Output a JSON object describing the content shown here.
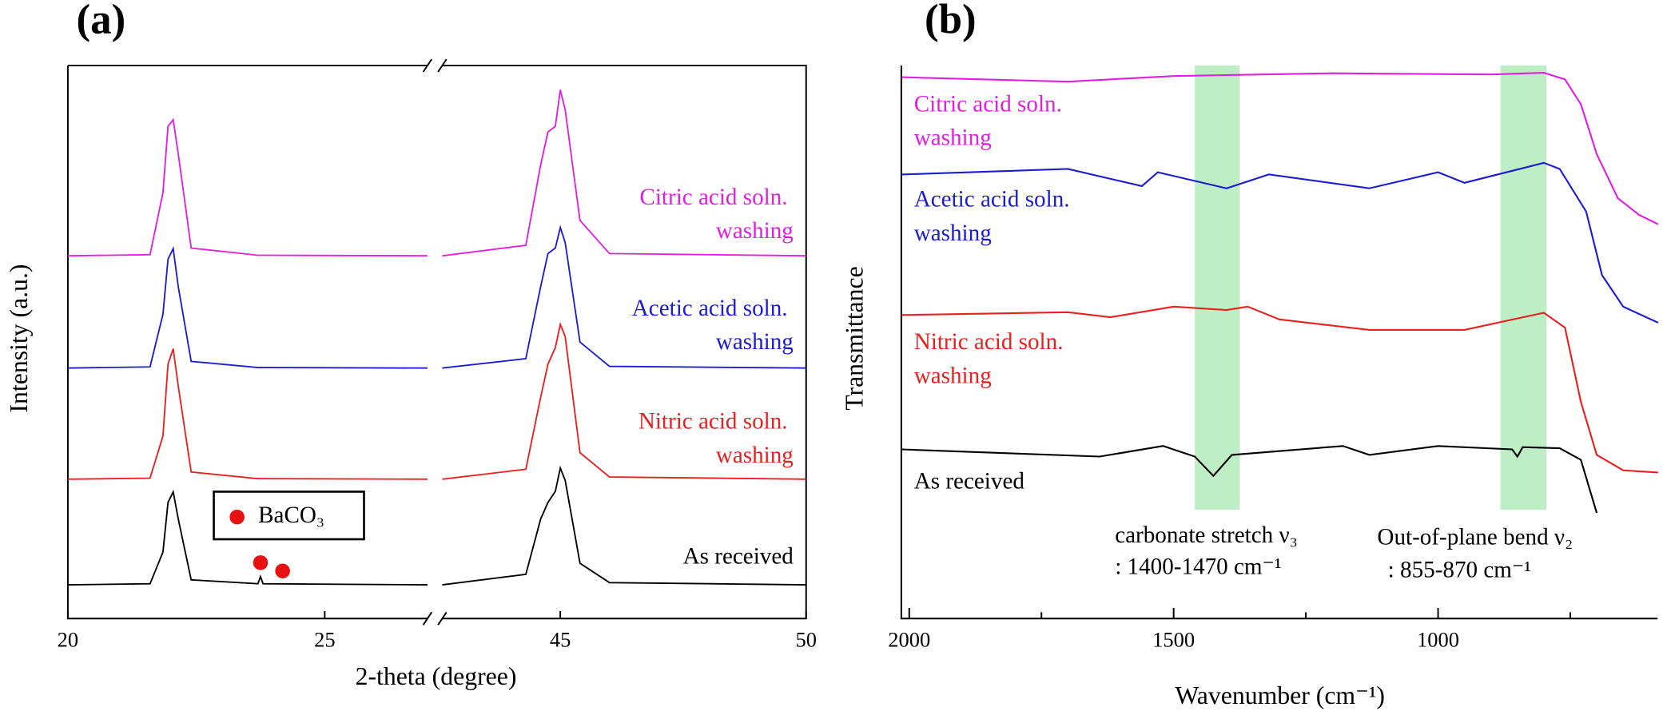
{
  "chart_data": [
    {
      "type": "line",
      "title": "(a)",
      "xlabel": "2-theta (degree)",
      "ylabel": "Intensity (a.u.)",
      "xlim": [
        20,
        50
      ],
      "xbreak": [
        27,
        42.6
      ],
      "xticks": [
        20,
        25,
        45,
        50
      ],
      "ylim": [
        0,
        100
      ],
      "x": [
        20,
        21.6,
        21.85,
        21.95,
        22.05,
        22.15,
        22.4,
        23.7,
        23.75,
        23.8,
        27,
        42.6,
        44.3,
        44.6,
        44.75,
        44.9,
        45.0,
        45.1,
        45.4,
        46,
        50
      ],
      "series": [
        {
          "name": "As received",
          "color": "#000000",
          "values": [
            6.1,
            6.3,
            12,
            21,
            22.9,
            18,
            7,
            6.3,
            7.6,
            6.3,
            6.1,
            6.1,
            8,
            18,
            21,
            23,
            27.2,
            25,
            10,
            6.5,
            6.1
          ]
        },
        {
          "name": "Nitric acid soln. washing",
          "color": "#e82020",
          "values": [
            25.2,
            25.4,
            33,
            46,
            48.8,
            42,
            26.5,
            25.3,
            25.3,
            25.3,
            25.2,
            25.2,
            27,
            40,
            46,
            49,
            53.2,
            51,
            30,
            25.6,
            25.2
          ]
        },
        {
          "name": "Acetic acid soln. washing",
          "color": "#1c1cd0",
          "values": [
            45.3,
            45.5,
            55,
            65,
            66.9,
            60,
            46.5,
            45.4,
            45.4,
            45.4,
            45.3,
            45.3,
            47,
            60,
            66,
            67,
            70.7,
            68,
            50,
            45.6,
            45.3
          ]
        },
        {
          "name": "Citric acid soln. washing",
          "color": "#e020e0",
          "values": [
            65.6,
            65.8,
            77,
            89,
            90.2,
            84,
            67,
            65.7,
            65.7,
            65.7,
            65.6,
            65.6,
            67.5,
            82,
            88,
            89,
            95.6,
            92,
            72,
            66,
            65.6
          ]
        }
      ],
      "markers": {
        "name": "BaCO₃",
        "color": "#e81010",
        "x": [
          23.75,
          24.18
        ],
        "values": [
          10.1,
          8.6
        ]
      }
    },
    {
      "type": "line",
      "title": "(b)",
      "xlabel": "Wavenumber (cm⁻¹)",
      "ylabel": "Transmittance",
      "xlim": [
        2015,
        585
      ],
      "xticks": [
        2000,
        1500,
        1000
      ],
      "xminor": [
        1750,
        1250,
        750
      ],
      "ylim": [
        0,
        100
      ],
      "bands": [
        [
          1460,
          1375
        ],
        [
          882,
          795
        ]
      ],
      "band_color": "#bdeec4",
      "annotations": [
        "carbonate stretch ν₃",
        ": 1400-1470 cm⁻¹",
        "Out-of-plane bend ν₂",
        ": 855-870 cm⁻¹"
      ],
      "series": [
        {
          "name": "Citric acid soln. washing",
          "color": "#e020e0",
          "x": [
            2014,
            1700,
            1500,
            1200,
            900,
            800,
            760,
            730,
            700,
            660,
            620,
            584
          ],
          "values": [
            97.9,
            97.1,
            98.1,
            98.6,
            98.4,
            98.7,
            97.5,
            93,
            84,
            76,
            73,
            71.3
          ]
        },
        {
          "name": "Acetic acid soln. washing",
          "color": "#1c1cd0",
          "x": [
            2014,
            1700,
            1560,
            1530,
            1400,
            1320,
            1130,
            1000,
            950,
            800,
            770,
            720,
            690,
            650,
            584
          ],
          "values": [
            80.3,
            81.3,
            78.2,
            80.7,
            77.8,
            80.3,
            77.8,
            80.7,
            78.8,
            82.4,
            81.3,
            73.6,
            62.1,
            56.4,
            53.5
          ]
        },
        {
          "name": "Nitric acid soln. washing",
          "color": "#e82020",
          "x": [
            2014,
            1700,
            1620,
            1500,
            1400,
            1360,
            1300,
            1130,
            950,
            800,
            760,
            730,
            700,
            650,
            584
          ],
          "values": [
            54.9,
            55.4,
            54.5,
            56.4,
            55.8,
            56.4,
            54.1,
            52.2,
            52.2,
            55.3,
            52.6,
            39.2,
            29.6,
            26.8,
            26.4
          ]
        },
        {
          "name": "As received",
          "color": "#000000",
          "x": [
            2014,
            1640,
            1520,
            1460,
            1425,
            1390,
            1180,
            1130,
            1000,
            860,
            850,
            840,
            770,
            730,
            700
          ],
          "values": [
            30.6,
            29.3,
            31.2,
            29.3,
            25.8,
            29.6,
            31.2,
            29.6,
            31.2,
            30.6,
            29.3,
            31,
            30.8,
            28.7,
            19.1
          ]
        }
      ]
    }
  ]
}
